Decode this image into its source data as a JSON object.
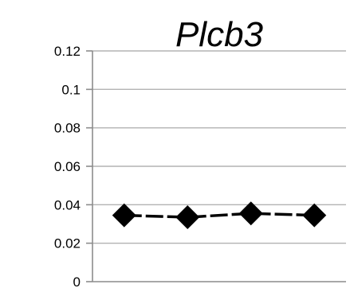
{
  "chart_data": {
    "type": "line",
    "title": "Plcb3",
    "xlabel": "",
    "ylabel": "",
    "categories": [
      "",
      "",
      "",
      ""
    ],
    "y_ticks": [
      "0",
      "0.02",
      "0.04",
      "0.06",
      "0.08",
      "0.1",
      "0.12"
    ],
    "ylim": [
      0,
      0.12
    ],
    "grid": true,
    "legend": "none",
    "series": [
      {
        "values": [
          0.0345,
          0.0335,
          0.0355,
          0.0345
        ],
        "color": "#000000",
        "marker": "diamond"
      }
    ]
  }
}
